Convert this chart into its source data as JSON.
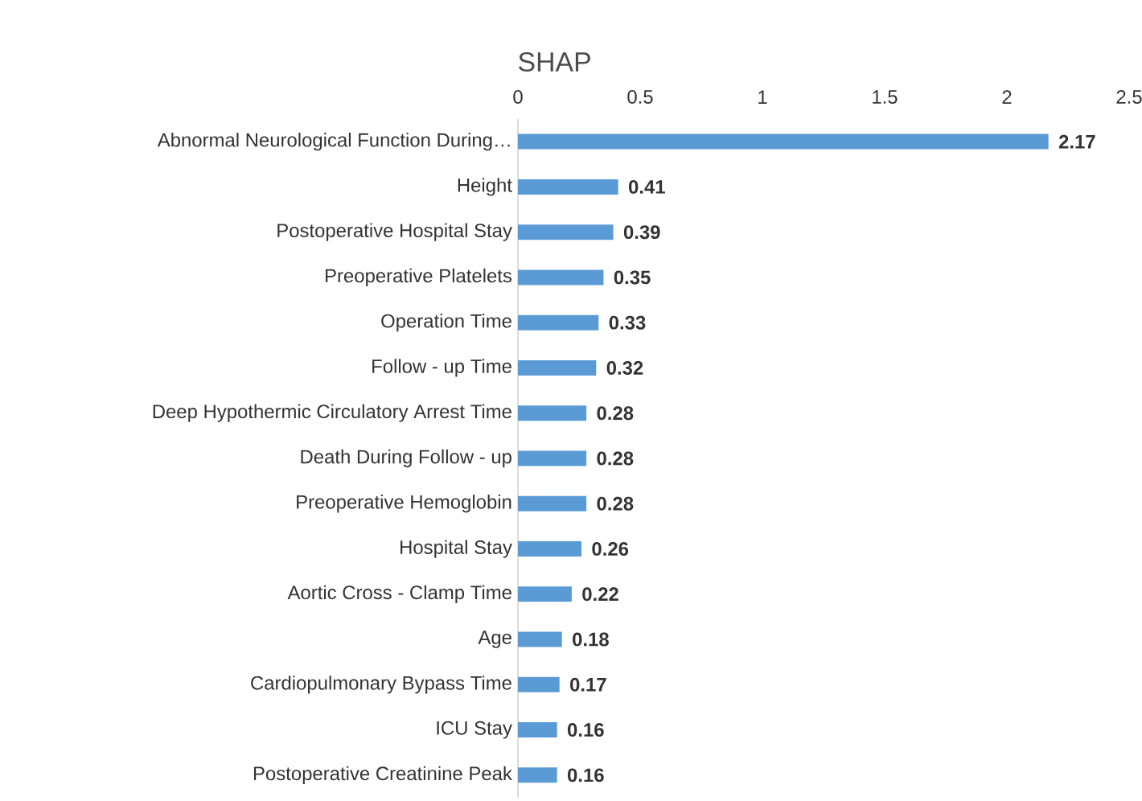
{
  "chart_data": {
    "type": "bar",
    "orientation": "horizontal",
    "title": "SHAP",
    "categories": [
      "Abnormal Neurological Function During…",
      "Height",
      "Postoperative Hospital Stay",
      "Preoperative Platelets",
      "Operation Time",
      "Follow - up Time",
      "Deep Hypothermic Circulatory Arrest Time",
      "Death During Follow - up",
      "Preoperative Hemoglobin",
      "Hospital Stay",
      "Aortic Cross - Clamp Time",
      "Age",
      "Cardiopulmonary Bypass Time",
      "ICU Stay",
      "Postoperative Creatinine Peak"
    ],
    "values": [
      2.17,
      0.41,
      0.39,
      0.35,
      0.33,
      0.32,
      0.28,
      0.28,
      0.28,
      0.26,
      0.22,
      0.18,
      0.17,
      0.16,
      0.16
    ],
    "color": "#5b9bd5",
    "xlim": [
      0,
      2.5
    ],
    "xticks": [
      0,
      0.5,
      1,
      1.5,
      2,
      2.5
    ],
    "data_labels": true,
    "grid": false
  }
}
